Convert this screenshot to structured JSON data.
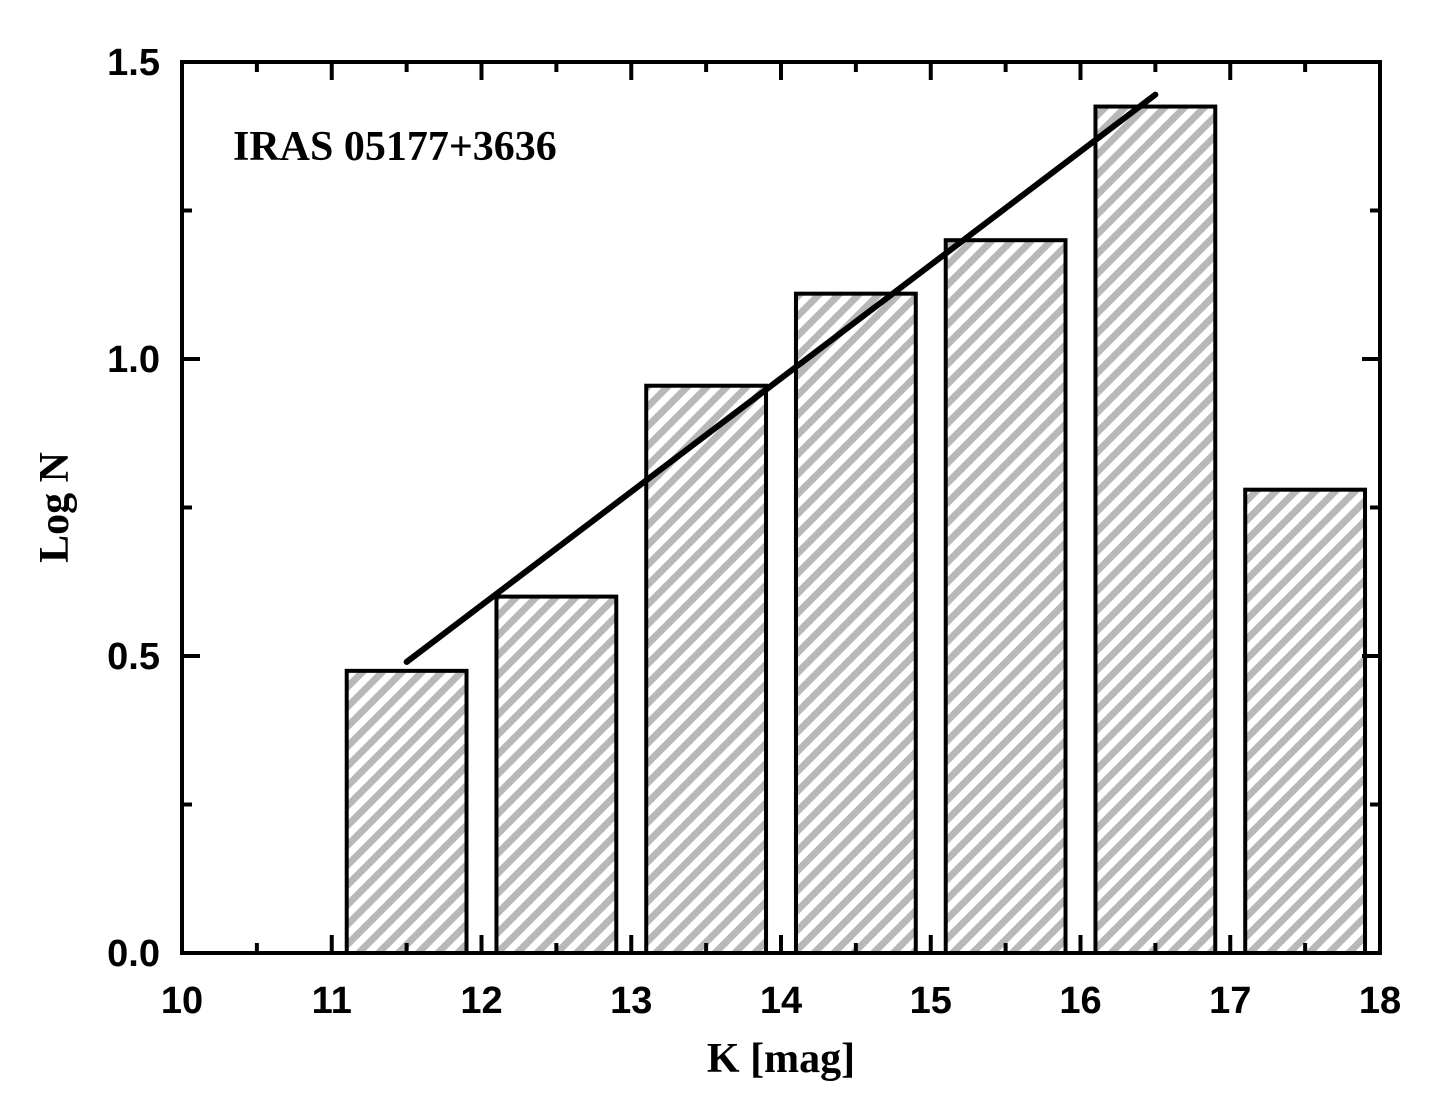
{
  "chart_data": {
    "type": "bar",
    "annotation": "IRAS 05177+3636",
    "xlabel": "K [mag]",
    "ylabel": "Log N",
    "xlim": [
      10,
      18
    ],
    "ylim": [
      0,
      1.5
    ],
    "x_ticks": [
      "10",
      "11",
      "12",
      "13",
      "14",
      "15",
      "16",
      "17",
      "18"
    ],
    "y_ticks": [
      "0.0",
      "0.5",
      "1.0",
      "1.5"
    ],
    "bars": [
      {
        "x0": 11.1,
        "x1": 11.9,
        "value": 0.475
      },
      {
        "x0": 12.1,
        "x1": 12.9,
        "value": 0.6
      },
      {
        "x0": 13.1,
        "x1": 13.9,
        "value": 0.955
      },
      {
        "x0": 14.1,
        "x1": 14.9,
        "value": 1.11
      },
      {
        "x0": 15.1,
        "x1": 15.9,
        "value": 1.2
      },
      {
        "x0": 16.1,
        "x1": 16.9,
        "value": 1.425
      },
      {
        "x0": 17.1,
        "x1": 17.9,
        "value": 0.78
      }
    ],
    "fit_line": {
      "x": [
        11.5,
        16.5
      ],
      "y": [
        0.49,
        1.445
      ]
    },
    "bar_fill": "hatched-gray",
    "hatch_color": "#b8b8b8",
    "line_color": "#000000"
  }
}
